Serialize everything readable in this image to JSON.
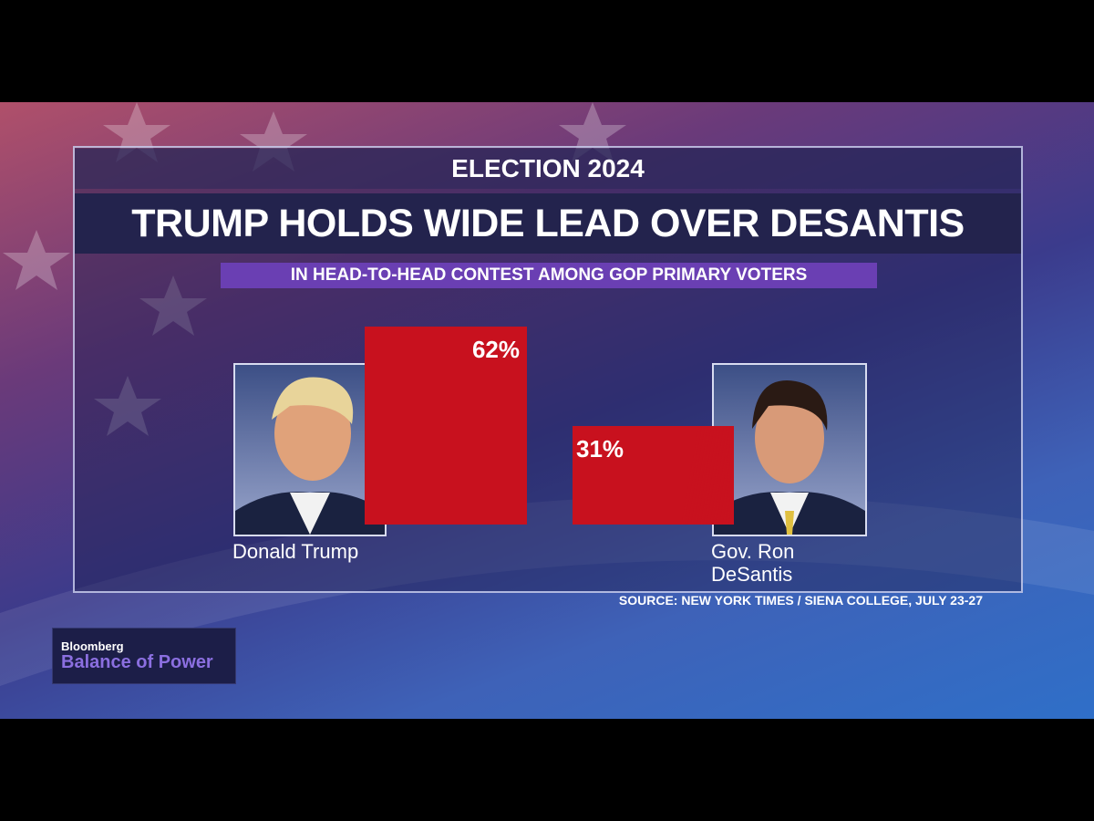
{
  "chart_data": {
    "type": "bar",
    "kicker": "ELECTION 2024",
    "title": "TRUMP HOLDS WIDE LEAD OVER DESANTIS",
    "subtitle": "IN HEAD-TO-HEAD CONTEST AMONG GOP PRIMARY VOTERS",
    "categories": [
      "Donald Trump",
      "Gov. Ron DeSantis"
    ],
    "values": [
      62,
      31
    ],
    "value_labels": [
      "62%",
      "31%"
    ],
    "color": "#c8111e",
    "source": "SOURCE: NEW YORK TIMES / SIENA COLLEGE, JULY 23-27"
  },
  "branding": {
    "network": "Bloomberg",
    "show": "Balance of Power"
  }
}
